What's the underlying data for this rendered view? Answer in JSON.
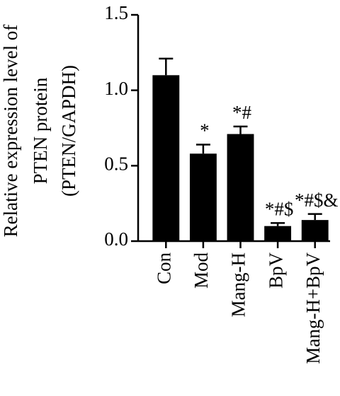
{
  "chart_data": {
    "type": "bar",
    "ylabel": [
      "Relative expression level of",
      "PTEN protein",
      "(PTEN/GAPDH)"
    ],
    "categories": [
      "Con",
      "Mod",
      "Mang-H",
      "BpV",
      "Mang-H+BpV"
    ],
    "values": [
      1.1,
      0.58,
      0.71,
      0.1,
      0.14
    ],
    "errors": [
      0.11,
      0.06,
      0.05,
      0.02,
      0.04
    ],
    "annotations": [
      null,
      "*",
      "*#",
      "*#$",
      "*#$&"
    ],
    "color": "#000000",
    "ylim": [
      0,
      1.5
    ],
    "yticks": [
      {
        "value": 0,
        "label": "0.0"
      },
      {
        "value": 0.5,
        "label": "0.5"
      },
      {
        "value": 1,
        "label": "1.0"
      },
      {
        "value": 1.5,
        "label": "1.5"
      }
    ]
  }
}
